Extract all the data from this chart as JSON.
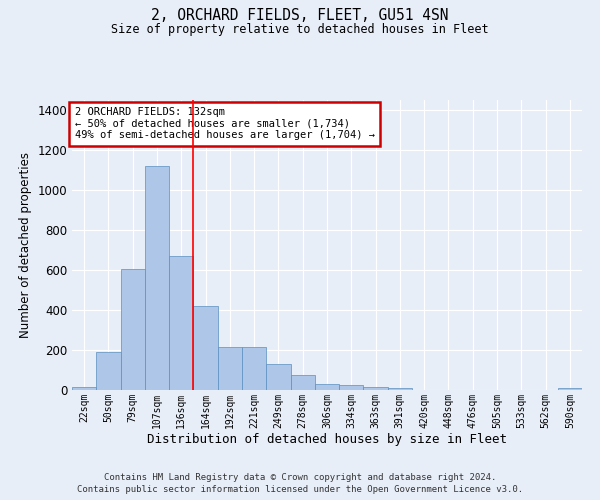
{
  "title": "2, ORCHARD FIELDS, FLEET, GU51 4SN",
  "subtitle": "Size of property relative to detached houses in Fleet",
  "xlabel": "Distribution of detached houses by size in Fleet",
  "ylabel": "Number of detached properties",
  "footnote1": "Contains HM Land Registry data © Crown copyright and database right 2024.",
  "footnote2": "Contains public sector information licensed under the Open Government Licence v3.0.",
  "bar_labels": [
    "22sqm",
    "50sqm",
    "79sqm",
    "107sqm",
    "136sqm",
    "164sqm",
    "192sqm",
    "221sqm",
    "249sqm",
    "278sqm",
    "306sqm",
    "334sqm",
    "363sqm",
    "391sqm",
    "420sqm",
    "448sqm",
    "476sqm",
    "505sqm",
    "533sqm",
    "562sqm",
    "590sqm"
  ],
  "bar_values": [
    15,
    190,
    605,
    1120,
    670,
    420,
    215,
    215,
    130,
    75,
    30,
    25,
    15,
    12,
    0,
    0,
    0,
    0,
    0,
    0,
    12
  ],
  "bar_color": "#aec6e8",
  "bar_edge_color": "#5a8fc0",
  "ylim": [
    0,
    1450
  ],
  "yticks": [
    0,
    200,
    400,
    600,
    800,
    1000,
    1200,
    1400
  ],
  "property_label": "2 ORCHARD FIELDS: 132sqm",
  "annotation_line1": "← 50% of detached houses are smaller (1,734)",
  "annotation_line2": "49% of semi-detached houses are larger (1,704) →",
  "vline_x_index": 4.5,
  "annotation_box_color": "#ffffff",
  "annotation_box_edge": "#cc0000",
  "background_color": "#e8eef8"
}
